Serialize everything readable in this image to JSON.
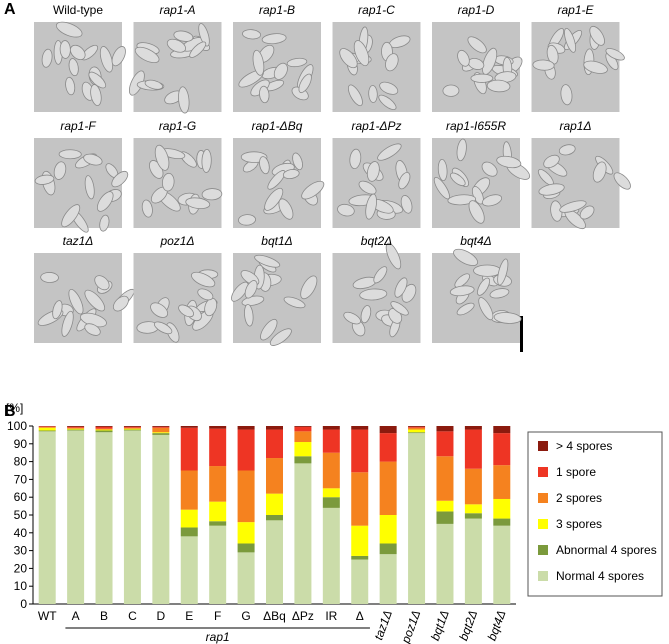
{
  "figure": {
    "panel_a_label": "A",
    "panel_b_label": "B",
    "images": [
      {
        "label": "Wild-type"
      },
      {
        "label": "rap1-A"
      },
      {
        "label": "rap1-B"
      },
      {
        "label": "rap1-C"
      },
      {
        "label": "rap1-D"
      },
      {
        "label": "rap1-E"
      },
      {
        "label": "rap1-F"
      },
      {
        "label": "rap1-G"
      },
      {
        "label": "rap1-ΔBq"
      },
      {
        "label": "rap1-ΔPz"
      },
      {
        "label": "rap1-I655R"
      },
      {
        "label": "rap1Δ"
      },
      {
        "label": "taz1Δ"
      },
      {
        "label": "poz1Δ"
      },
      {
        "label": "bqt1Δ"
      },
      {
        "label": "bqt2Δ"
      },
      {
        "label": "bqt4Δ"
      }
    ]
  },
  "chart_data": {
    "type": "stacked_bar",
    "ylabel": "[%]",
    "group_label": "rap1",
    "categories": [
      "WT",
      "A",
      "B",
      "C",
      "D",
      "E",
      "F",
      "G",
      "ΔBq",
      "ΔPz",
      "IR",
      "Δ",
      "taz1Δ",
      "poz1Δ",
      "bqt1Δ",
      "bqt2Δ",
      "bqt4Δ"
    ],
    "series": [
      {
        "name": "Normal 4 spores",
        "color": "#cbdca9",
        "values": [
          97,
          97.5,
          96.5,
          97.5,
          95,
          38,
          44,
          29,
          47,
          79,
          54,
          25,
          28,
          96,
          45,
          48,
          44
        ]
      },
      {
        "name": "Abnormal 4 spores",
        "color": "#7b9a3c",
        "values": [
          0.5,
          0.5,
          1,
          0.5,
          1,
          5,
          2.5,
          5,
          3,
          4,
          6,
          2,
          6,
          0.5,
          7,
          3,
          4
        ]
      },
      {
        "name": "3 spores",
        "color": "#ffff00",
        "values": [
          1.5,
          0.5,
          0.5,
          0.5,
          0.5,
          10,
          11,
          12,
          12,
          8,
          5,
          17,
          16,
          1.5,
          6,
          5,
          11
        ]
      },
      {
        "name": "2 spores",
        "color": "#f5821f",
        "values": [
          0.5,
          0.5,
          0.5,
          0.5,
          2.5,
          22,
          20,
          29,
          20,
          6,
          20,
          30,
          30,
          1,
          25,
          20,
          19
        ]
      },
      {
        "name": "1 spore",
        "color": "#ee3524",
        "values": [
          0.3,
          0.5,
          1,
          0.5,
          0.5,
          24,
          21,
          23,
          16,
          2.5,
          13,
          24,
          16,
          0.5,
          14,
          22,
          18
        ]
      },
      {
        "name": "> 4 spores",
        "color": "#8b1a0e",
        "values": [
          0.2,
          0.5,
          0.5,
          0.5,
          0.5,
          1,
          1.5,
          2,
          2,
          0.5,
          2,
          2,
          4,
          0.5,
          3,
          2,
          4
        ]
      }
    ],
    "ylim": [
      0,
      100
    ],
    "yticks": [
      0,
      10,
      20,
      30,
      40,
      50,
      60,
      70,
      80,
      90,
      100
    ]
  }
}
